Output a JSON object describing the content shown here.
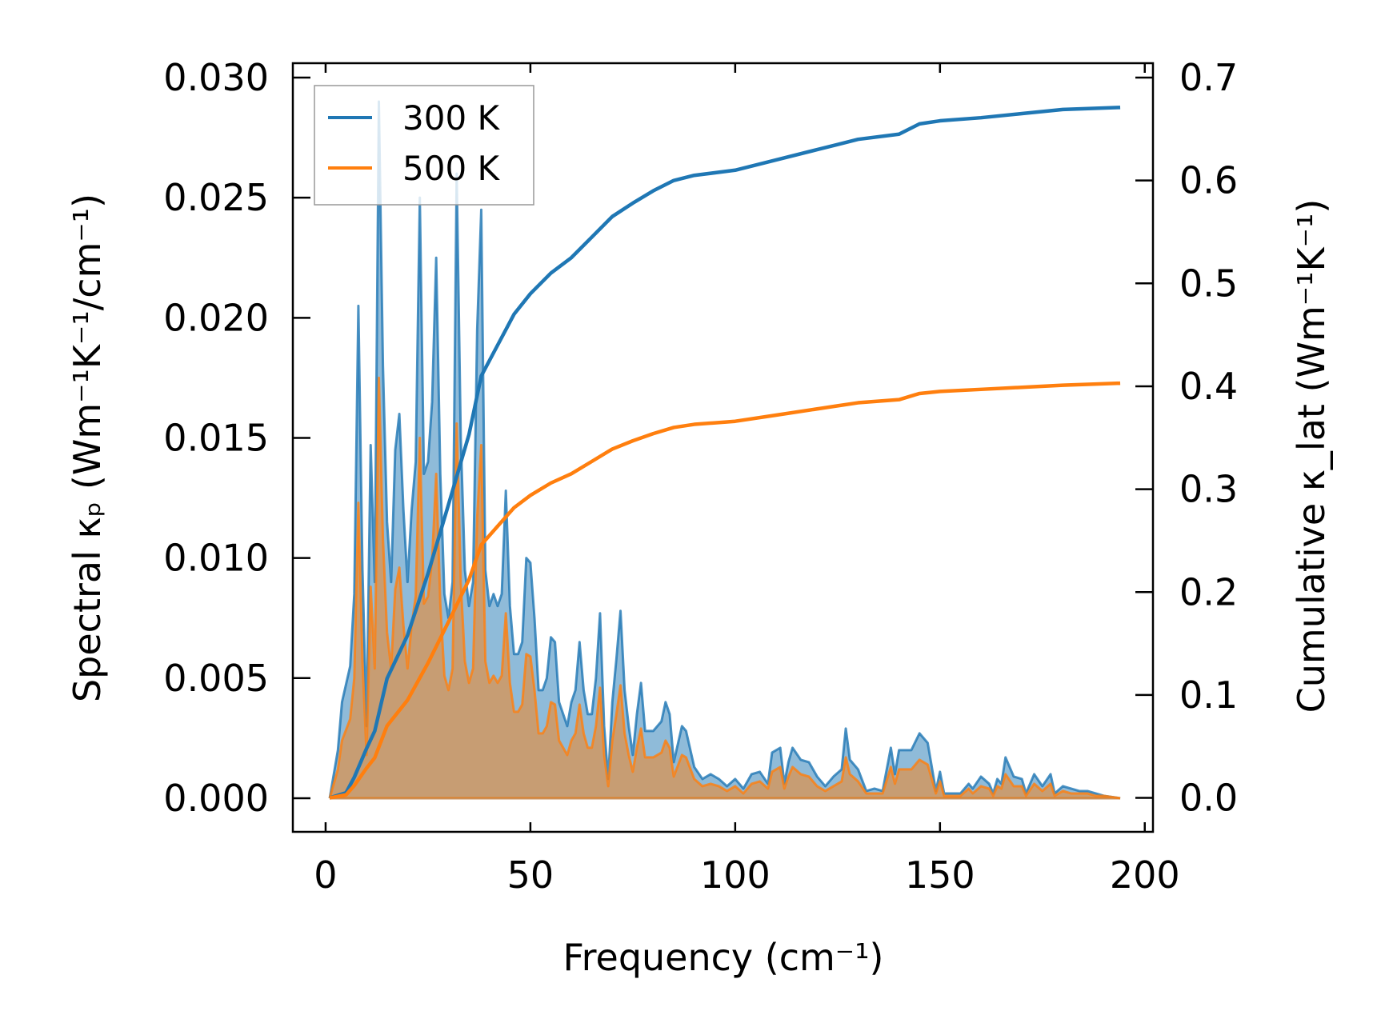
{
  "chart_data": {
    "type": "line",
    "xlabel": "Frequency (cm⁻¹)",
    "ylabel_left": "Spectral κₚ (Wm⁻¹K⁻¹/cm⁻¹)",
    "ylabel_right": "Cumulative κ_lat (Wm⁻¹K⁻¹)",
    "xlim": [
      -8,
      202
    ],
    "ylim_left": [
      -0.0014,
      0.0306
    ],
    "ylim_right": [
      -0.033,
      0.714
    ],
    "xticks": [
      "0",
      "50",
      "100",
      "150",
      "200"
    ],
    "xtick_values": [
      0,
      50,
      100,
      150,
      200
    ],
    "yticks_left": [
      "0.000",
      "0.005",
      "0.010",
      "0.015",
      "0.020",
      "0.025",
      "0.030"
    ],
    "ytick_values_left": [
      0,
      0.005,
      0.01,
      0.015,
      0.02,
      0.025,
      0.03
    ],
    "yticks_right": [
      "0.0",
      "0.1",
      "0.2",
      "0.3",
      "0.4",
      "0.5",
      "0.6",
      "0.7"
    ],
    "ytick_values_right": [
      0,
      0.1,
      0.2,
      0.3,
      0.4,
      0.5,
      0.6,
      0.7
    ],
    "legend": {
      "placement": "upper-left",
      "entries": [
        "300 K",
        "500 K"
      ]
    },
    "colors": {
      "300 K": "#1f77b4",
      "500 K": "#ff7f0e"
    },
    "spectral_x": [
      1,
      3,
      4,
      6,
      7,
      8,
      9,
      10,
      11,
      12,
      13,
      14,
      15,
      16,
      17,
      18,
      19,
      20,
      21,
      22,
      23,
      24,
      25,
      26,
      27,
      28,
      29,
      30,
      31,
      32,
      33,
      34,
      35,
      36,
      37,
      38,
      39,
      40,
      41,
      42,
      43,
      44,
      45,
      46,
      47,
      48,
      49,
      50,
      51,
      52,
      53,
      54,
      55,
      56,
      57,
      58,
      59,
      60,
      61,
      62,
      63,
      64,
      65,
      66,
      67,
      68,
      69,
      70,
      71,
      72,
      73,
      74,
      75,
      76,
      77,
      78,
      80,
      82,
      83,
      84,
      85,
      87,
      88,
      90,
      92,
      94,
      96,
      98,
      100,
      102,
      104,
      106,
      108,
      109,
      111,
      112,
      113,
      114,
      116,
      118,
      120,
      122,
      124,
      126,
      127,
      128,
      130,
      132,
      134,
      136,
      138,
      139,
      140,
      143,
      145,
      147,
      148,
      149,
      150,
      151,
      153,
      155,
      157,
      158,
      160,
      162,
      163,
      164,
      165,
      166,
      168,
      170,
      171,
      173,
      175,
      177,
      178,
      180,
      182,
      184,
      186,
      188,
      190,
      194
    ],
    "series": [
      {
        "name": "300 K",
        "spectral": [
          0,
          0.002,
          0.004,
          0.0055,
          0.0085,
          0.0205,
          0.0095,
          0.003,
          0.0147,
          0.009,
          0.029,
          0.018,
          0.0115,
          0.009,
          0.0145,
          0.016,
          0.012,
          0.009,
          0.012,
          0.014,
          0.025,
          0.0135,
          0.014,
          0.0165,
          0.0225,
          0.0135,
          0.0085,
          0.0075,
          0.009,
          0.026,
          0.015,
          0.0095,
          0.008,
          0.009,
          0.0195,
          0.0245,
          0.0095,
          0.008,
          0.0085,
          0.008,
          0.0085,
          0.0128,
          0.008,
          0.006,
          0.006,
          0.0065,
          0.01,
          0.0098,
          0.0075,
          0.0045,
          0.0045,
          0.005,
          0.0067,
          0.0065,
          0.004,
          0.0035,
          0.003,
          0.004,
          0.0045,
          0.0065,
          0.0045,
          0.0035,
          0.0035,
          0.005,
          0.0077,
          0.003,
          0.0008,
          0.004,
          0.0058,
          0.0078,
          0.0045,
          0.003,
          0.0018,
          0.0035,
          0.0048,
          0.0028,
          0.0028,
          0.0032,
          0.004,
          0.0035,
          0.0015,
          0.003,
          0.0028,
          0.0013,
          0.0008,
          0.001,
          0.0008,
          0.0005,
          0.0008,
          0.0004,
          0.001,
          0.0011,
          0.0006,
          0.0019,
          0.0021,
          0.0006,
          0.0015,
          0.0021,
          0.0016,
          0.0015,
          0.0009,
          0.0005,
          0.0009,
          0.0012,
          0.0029,
          0.0016,
          0.0012,
          0.0003,
          0.0004,
          0.0003,
          0.0021,
          0.001,
          0.002,
          0.002,
          0.0027,
          0.0023,
          0.0013,
          0.0003,
          0.0011,
          0.0002,
          0.0002,
          0.0002,
          0.0006,
          0.0004,
          0.0009,
          0.0006,
          0.0002,
          0.0008,
          0.0006,
          0.0017,
          0.0009,
          0.0008,
          0.0002,
          0.001,
          0.0005,
          0.001,
          0.0002,
          0.0005,
          0.0004,
          0.0003,
          0.0003,
          0.0002,
          0.0001,
          0
        ],
        "cum_x": [
          1,
          5,
          7,
          10,
          12,
          15,
          20,
          25,
          30,
          35,
          38,
          42,
          46,
          50,
          55,
          60,
          65,
          70,
          75,
          80,
          85,
          90,
          100,
          110,
          120,
          125,
          130,
          140,
          145,
          150,
          160,
          170,
          180,
          194
        ],
        "cumulative": [
          0,
          0.005,
          0.02,
          0.048,
          0.065,
          0.116,
          0.158,
          0.218,
          0.285,
          0.353,
          0.41,
          0.44,
          0.47,
          0.49,
          0.51,
          0.525,
          0.545,
          0.565,
          0.578,
          0.59,
          0.6,
          0.605,
          0.61,
          0.62,
          0.63,
          0.635,
          0.64,
          0.645,
          0.655,
          0.658,
          0.661,
          0.665,
          0.669,
          0.671
        ]
      },
      {
        "name": "500 K",
        "spectral": [
          0,
          0.0012,
          0.0024,
          0.0033,
          0.005,
          0.0123,
          0.0057,
          0.0018,
          0.0088,
          0.0054,
          0.0175,
          0.0108,
          0.0069,
          0.0054,
          0.0087,
          0.0096,
          0.0072,
          0.0054,
          0.0072,
          0.0084,
          0.015,
          0.0081,
          0.0084,
          0.0099,
          0.0135,
          0.0081,
          0.0051,
          0.0045,
          0.0054,
          0.0156,
          0.009,
          0.0057,
          0.0048,
          0.0054,
          0.0117,
          0.0147,
          0.0057,
          0.0048,
          0.0051,
          0.0048,
          0.0051,
          0.0077,
          0.0048,
          0.0036,
          0.0036,
          0.0039,
          0.006,
          0.0059,
          0.0045,
          0.0027,
          0.0027,
          0.003,
          0.004,
          0.0039,
          0.0024,
          0.0021,
          0.0018,
          0.0024,
          0.0027,
          0.0039,
          0.0027,
          0.0021,
          0.0021,
          0.003,
          0.0046,
          0.0018,
          0.0005,
          0.0024,
          0.0035,
          0.0047,
          0.0027,
          0.0018,
          0.0011,
          0.0021,
          0.0029,
          0.0017,
          0.0017,
          0.0019,
          0.0024,
          0.0021,
          0.0009,
          0.0018,
          0.0017,
          0.0008,
          0.0005,
          0.0006,
          0.0005,
          0.0003,
          0.0005,
          0.0002,
          0.0006,
          0.0007,
          0.0004,
          0.0011,
          0.0013,
          0.0004,
          0.0009,
          0.0013,
          0.001,
          0.0009,
          0.0005,
          0.0003,
          0.0005,
          0.0007,
          0.0017,
          0.001,
          0.0007,
          0.0002,
          0.0002,
          0.0002,
          0.0013,
          0.0006,
          0.0012,
          0.0012,
          0.0016,
          0.0014,
          0.0008,
          0.0002,
          0.0007,
          0.0001,
          0.0001,
          0.0001,
          0.0004,
          0.0002,
          0.0005,
          0.0004,
          0.0001,
          0.0005,
          0.0004,
          0.001,
          0.0005,
          0.0005,
          0.0001,
          0.0006,
          0.0003,
          0.0006,
          0.0001,
          0.0003,
          0.0002,
          0.0002,
          0.0002,
          0.0001,
          0.0001,
          0
        ],
        "cum_x": [
          1,
          5,
          7,
          10,
          12,
          15,
          20,
          25,
          30,
          35,
          38,
          42,
          46,
          50,
          55,
          60,
          65,
          70,
          75,
          80,
          85,
          90,
          100,
          110,
          120,
          125,
          130,
          140,
          145,
          150,
          160,
          170,
          180,
          194
        ],
        "cumulative": [
          0,
          0.003,
          0.012,
          0.029,
          0.039,
          0.07,
          0.095,
          0.131,
          0.171,
          0.212,
          0.246,
          0.264,
          0.282,
          0.294,
          0.306,
          0.315,
          0.327,
          0.339,
          0.347,
          0.354,
          0.36,
          0.363,
          0.366,
          0.372,
          0.378,
          0.381,
          0.384,
          0.387,
          0.393,
          0.395,
          0.397,
          0.399,
          0.401,
          0.403
        ]
      }
    ]
  }
}
